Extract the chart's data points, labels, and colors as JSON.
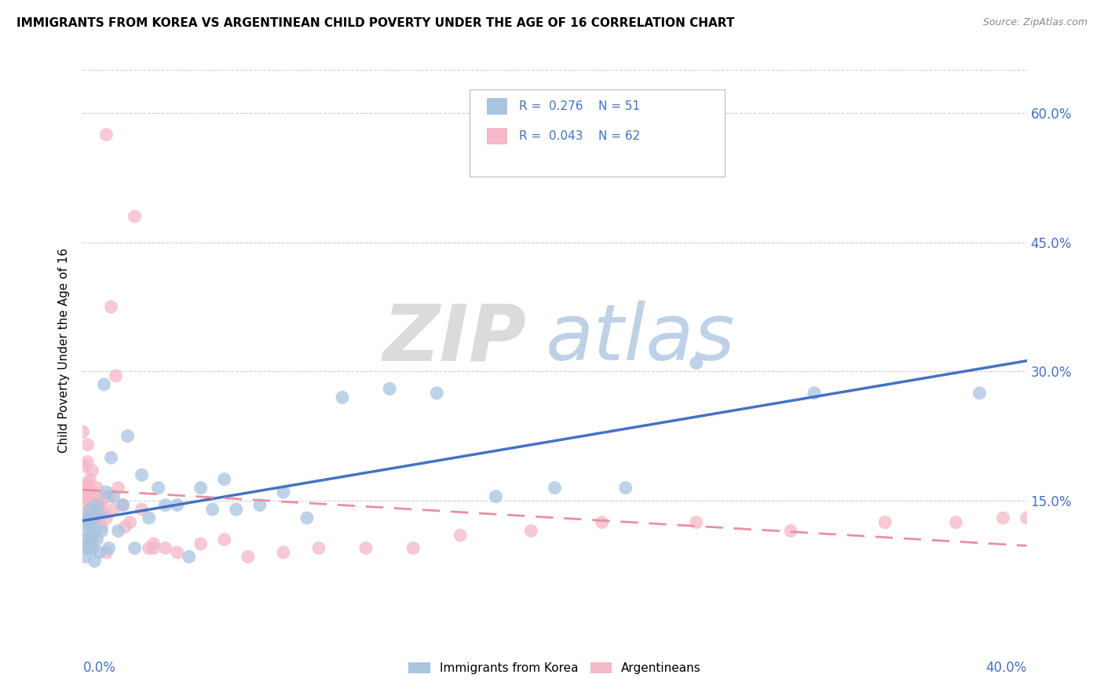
{
  "title": "IMMIGRANTS FROM KOREA VS ARGENTINEAN CHILD POVERTY UNDER THE AGE OF 16 CORRELATION CHART",
  "source": "Source: ZipAtlas.com",
  "ylabel": "Child Poverty Under the Age of 16",
  "color_korea": "#a8c4e0",
  "color_arg": "#f4b8c8",
  "line_korea": "#4472c4",
  "line_arg": "#e8909e",
  "watermark_zip": "ZIP",
  "watermark_atlas": "atlas",
  "xlim": [
    0.0,
    0.4
  ],
  "ylim": [
    0.0,
    0.65
  ],
  "ytick_vals": [
    0.15,
    0.3,
    0.45,
    0.6
  ],
  "ytick_labels": [
    "15.0%",
    "30.0%",
    "45.0%",
    "60.0%"
  ],
  "legend_korea": "R =  0.276    N = 51",
  "legend_arg": "R =  0.043    N = 62",
  "scatter_korea_x": [
    0.0,
    0.001,
    0.001,
    0.001,
    0.002,
    0.002,
    0.002,
    0.003,
    0.003,
    0.003,
    0.004,
    0.004,
    0.005,
    0.005,
    0.005,
    0.006,
    0.006,
    0.007,
    0.007,
    0.008,
    0.009,
    0.01,
    0.011,
    0.012,
    0.013,
    0.015,
    0.017,
    0.019,
    0.022,
    0.025,
    0.028,
    0.032,
    0.035,
    0.04,
    0.045,
    0.05,
    0.055,
    0.06,
    0.065,
    0.075,
    0.085,
    0.095,
    0.11,
    0.13,
    0.15,
    0.175,
    0.2,
    0.23,
    0.26,
    0.31,
    0.38
  ],
  "scatter_korea_y": [
    0.1,
    0.13,
    0.105,
    0.085,
    0.115,
    0.095,
    0.125,
    0.14,
    0.1,
    0.12,
    0.11,
    0.095,
    0.13,
    0.115,
    0.08,
    0.145,
    0.105,
    0.09,
    0.135,
    0.115,
    0.285,
    0.16,
    0.095,
    0.2,
    0.155,
    0.115,
    0.145,
    0.225,
    0.095,
    0.18,
    0.13,
    0.165,
    0.145,
    0.145,
    0.085,
    0.165,
    0.14,
    0.175,
    0.14,
    0.145,
    0.16,
    0.13,
    0.27,
    0.28,
    0.275,
    0.155,
    0.165,
    0.165,
    0.31,
    0.275,
    0.275
  ],
  "scatter_arg_x": [
    0.0,
    0.0,
    0.001,
    0.001,
    0.001,
    0.001,
    0.002,
    0.002,
    0.002,
    0.002,
    0.003,
    0.003,
    0.003,
    0.003,
    0.004,
    0.004,
    0.004,
    0.005,
    0.005,
    0.005,
    0.006,
    0.006,
    0.007,
    0.007,
    0.008,
    0.008,
    0.009,
    0.009,
    0.01,
    0.01,
    0.011,
    0.012,
    0.013,
    0.014,
    0.015,
    0.017,
    0.018,
    0.02,
    0.022,
    0.025,
    0.028,
    0.03,
    0.035,
    0.04,
    0.05,
    0.06,
    0.07,
    0.085,
    0.1,
    0.12,
    0.14,
    0.16,
    0.19,
    0.22,
    0.26,
    0.3,
    0.34,
    0.37,
    0.39,
    0.4,
    0.01,
    0.03
  ],
  "scatter_arg_y": [
    0.16,
    0.23,
    0.145,
    0.165,
    0.19,
    0.155,
    0.13,
    0.17,
    0.195,
    0.215,
    0.15,
    0.175,
    0.135,
    0.1,
    0.16,
    0.185,
    0.105,
    0.125,
    0.155,
    0.145,
    0.13,
    0.165,
    0.145,
    0.13,
    0.145,
    0.12,
    0.135,
    0.155,
    0.13,
    0.09,
    0.155,
    0.375,
    0.14,
    0.295,
    0.165,
    0.145,
    0.12,
    0.125,
    0.48,
    0.14,
    0.095,
    0.095,
    0.095,
    0.09,
    0.1,
    0.105,
    0.085,
    0.09,
    0.095,
    0.095,
    0.095,
    0.11,
    0.115,
    0.125,
    0.125,
    0.115,
    0.125,
    0.125,
    0.13,
    0.13,
    0.575,
    0.1
  ]
}
